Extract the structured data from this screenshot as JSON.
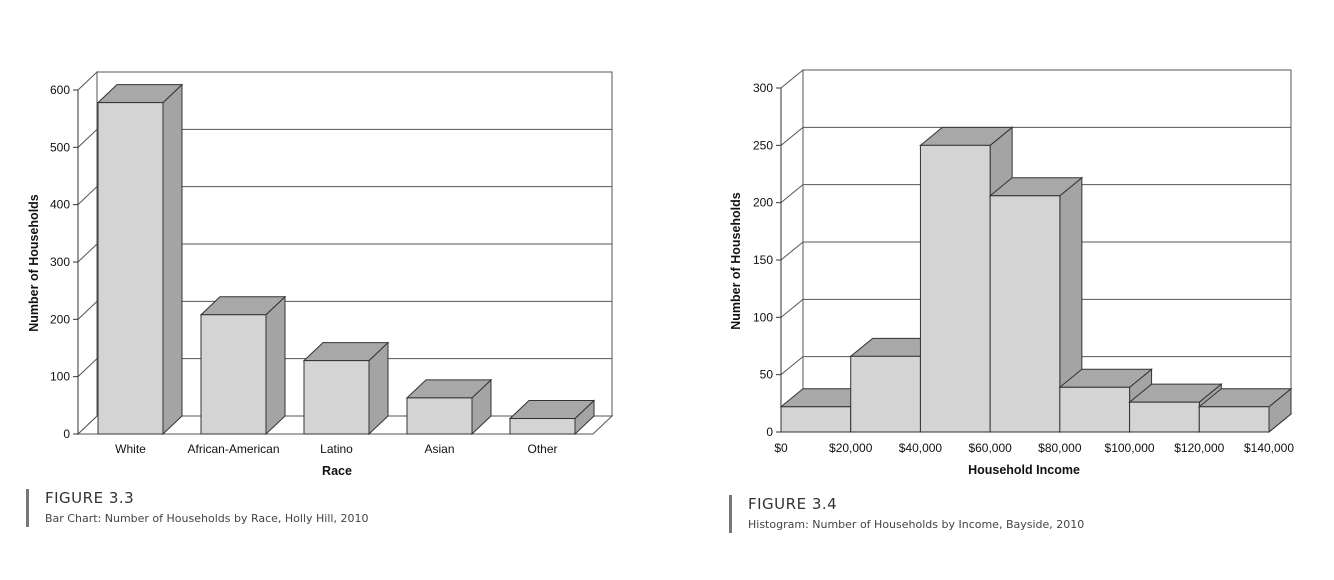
{
  "chart_data": [
    {
      "type": "bar",
      "title": "",
      "xlabel": "Race",
      "ylabel": "Number of Households",
      "categories": [
        "White",
        "African-American",
        "Latino",
        "Asian",
        "Other"
      ],
      "values": [
        578,
        208,
        128,
        63,
        27
      ],
      "ylim": [
        0,
        600
      ],
      "yticks": [
        "0",
        "100",
        "200",
        "300",
        "400",
        "500",
        "600"
      ],
      "grid": true,
      "style": "3d"
    },
    {
      "type": "bar",
      "title": "",
      "xlabel": "Household Income",
      "ylabel": "Number of Households",
      "bins": [
        [
          0,
          20000
        ],
        [
          20000,
          40000
        ],
        [
          40000,
          60000
        ],
        [
          60000,
          80000
        ],
        [
          80000,
          100000
        ],
        [
          100000,
          120000
        ],
        [
          120000,
          140000
        ]
      ],
      "values": [
        22,
        66,
        250,
        206,
        39,
        26,
        22
      ],
      "xticks": [
        "$0",
        "$20,000",
        "$40,000",
        "$60,000",
        "$80,000",
        "$100,000",
        "$120,000",
        "$140,000"
      ],
      "ylim": [
        0,
        300
      ],
      "yticks": [
        "0",
        "50",
        "100",
        "150",
        "200",
        "250",
        "300"
      ],
      "grid": true,
      "style": "3d histogram"
    }
  ],
  "captions": [
    {
      "figure": "FIGURE 3.3",
      "text": "Bar Chart: Number of Households by Race, Holly Hill, 2010"
    },
    {
      "figure": "FIGURE 3.4",
      "text": "Histogram: Number of Households by Income, Bayside, 2010"
    }
  ]
}
